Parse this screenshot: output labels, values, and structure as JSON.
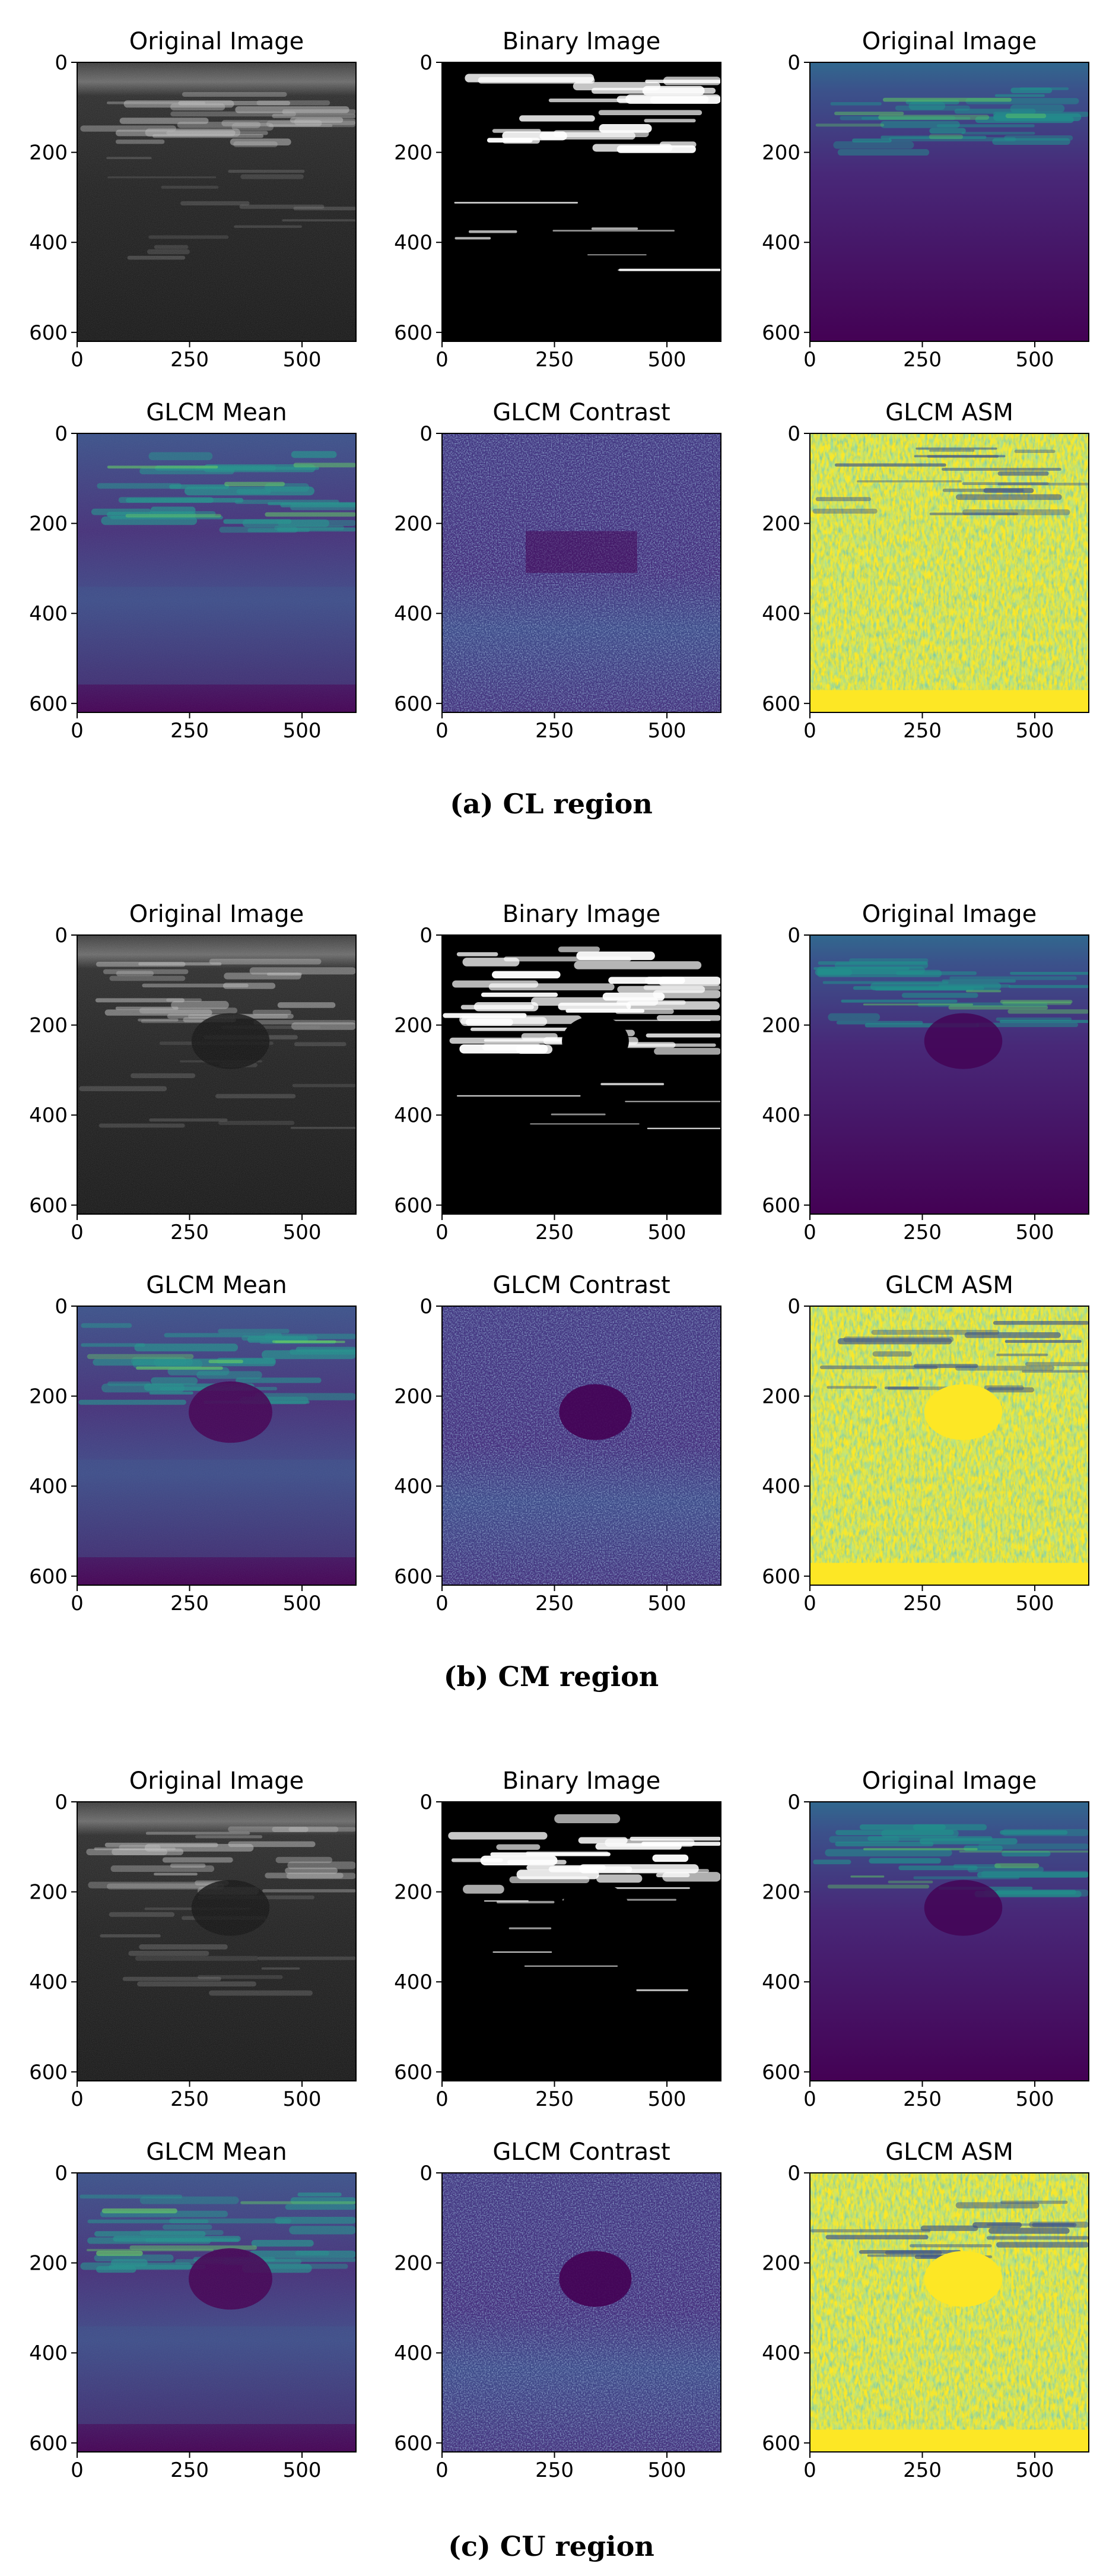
{
  "figure": {
    "groups": [
      {
        "caption": "(a) CL region",
        "panels": [
          {
            "title": "Original Image",
            "style": "gray"
          },
          {
            "title": "Binary Image",
            "style": "binary"
          },
          {
            "title": "Original Image",
            "style": "viridis"
          },
          {
            "title": "GLCM Mean",
            "style": "mean"
          },
          {
            "title": "GLCM Contrast",
            "style": "contrast"
          },
          {
            "title": "GLCM ASM",
            "style": "asm"
          }
        ]
      },
      {
        "caption": "(b) CM region",
        "panels": [
          {
            "title": "Original Image",
            "style": "gray"
          },
          {
            "title": "Binary Image",
            "style": "binary"
          },
          {
            "title": "Original Image",
            "style": "viridis"
          },
          {
            "title": "GLCM Mean",
            "style": "mean"
          },
          {
            "title": "GLCM Contrast",
            "style": "contrast"
          },
          {
            "title": "GLCM ASM",
            "style": "asm"
          }
        ]
      },
      {
        "caption": "(c) CU region",
        "panels": [
          {
            "title": "Original Image",
            "style": "gray"
          },
          {
            "title": "Binary Image",
            "style": "binary"
          },
          {
            "title": "Original Image",
            "style": "viridis"
          },
          {
            "title": "GLCM Mean",
            "style": "mean"
          },
          {
            "title": "GLCM Contrast",
            "style": "contrast"
          },
          {
            "title": "GLCM ASM",
            "style": "asm"
          }
        ]
      }
    ],
    "axes": {
      "x_ticks": [
        "0",
        "250",
        "500"
      ],
      "y_ticks": [
        "0",
        "200",
        "400",
        "600"
      ]
    },
    "colors": {
      "viridis_dark": "#440154",
      "viridis_mid": "#3b528b",
      "viridis_teal": "#21918c",
      "viridis_green": "#5ec962",
      "viridis_yellow": "#fde725",
      "binary_white": "#ffffff",
      "binary_black": "#000000"
    }
  }
}
